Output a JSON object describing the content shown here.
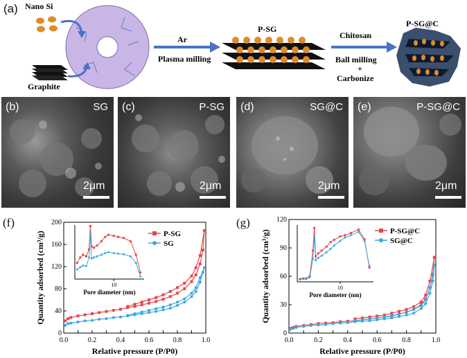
{
  "panel_a": {
    "label": "(a)",
    "nano_si": "Nano Si",
    "graphite": "Graphite",
    "step1_gas": "Ar",
    "step1_method": "Plasma milling",
    "intermediate": "P-SG",
    "step2_top": "Chitosan",
    "step2_mid": "Ball milling",
    "step2_plus": "+",
    "step2_bot": "Carbonize",
    "final": "P-SG@C",
    "colors": {
      "disk": "#c9b6e6",
      "si": "#e08a2c",
      "arrow": "#4a72c4"
    }
  },
  "sem_panels": [
    {
      "label": "(b)",
      "name": "SG",
      "scale": "2μm"
    },
    {
      "label": "(c)",
      "name": "P-SG",
      "scale": "2μm"
    },
    {
      "label": "(d)",
      "name": "SG@C",
      "scale": "2μm"
    },
    {
      "label": "(e)",
      "name": "P-SG@C",
      "scale": "2μm"
    }
  ],
  "chart_data": [
    {
      "panel": "(f)",
      "type": "line",
      "xlabel": "Relative pressure (P/P0)",
      "ylabel": "Quantity adsorbed (cm³/g)",
      "xlim": [
        0,
        1.0
      ],
      "ylim": [
        0,
        200
      ],
      "xticks": [
        "0.0",
        "0.1",
        "0.2",
        "0.3",
        "0.4",
        "0.5",
        "0.6",
        "0.7",
        "0.8",
        "0.9",
        "1.0"
      ],
      "yticks": [
        "0",
        "40",
        "80",
        "120",
        "160",
        "200"
      ],
      "legend_position": "top-right",
      "series": [
        {
          "name": "P-SG",
          "color": "#e8474c",
          "x": [
            0.01,
            0.03,
            0.05,
            0.1,
            0.15,
            0.2,
            0.25,
            0.3,
            0.35,
            0.4,
            0.45,
            0.5,
            0.55,
            0.6,
            0.65,
            0.7,
            0.75,
            0.8,
            0.85,
            0.9,
            0.93,
            0.96,
            0.98,
            0.99
          ],
          "y": [
            22,
            26,
            28,
            31,
            33,
            35,
            37,
            39,
            41,
            43,
            46,
            48,
            51,
            54,
            57,
            61,
            66,
            72,
            80,
            93,
            105,
            125,
            150,
            185
          ],
          "desorption_x": [
            0.99,
            0.96,
            0.93,
            0.9,
            0.85,
            0.8,
            0.75,
            0.7,
            0.65,
            0.6,
            0.55,
            0.5,
            0.45
          ],
          "desorption_y": [
            185,
            140,
            118,
            103,
            90,
            82,
            75,
            69,
            64,
            60,
            56,
            52,
            48
          ]
        },
        {
          "name": "SG",
          "color": "#3aa8e0",
          "x": [
            0.01,
            0.03,
            0.05,
            0.1,
            0.15,
            0.2,
            0.25,
            0.3,
            0.35,
            0.4,
            0.45,
            0.5,
            0.55,
            0.6,
            0.65,
            0.7,
            0.75,
            0.8,
            0.85,
            0.9,
            0.93,
            0.96,
            0.98,
            0.99
          ],
          "y": [
            14,
            17,
            18,
            20,
            22,
            23,
            25,
            26,
            28,
            29,
            31,
            33,
            35,
            37,
            39,
            42,
            45,
            50,
            56,
            66,
            75,
            92,
            110,
            118
          ],
          "desorption_x": [
            0.99,
            0.96,
            0.93,
            0.9,
            0.85,
            0.8,
            0.75,
            0.7,
            0.65,
            0.6,
            0.55,
            0.5,
            0.45
          ],
          "desorption_y": [
            118,
            100,
            82,
            72,
            62,
            56,
            51,
            47,
            44,
            41,
            38,
            35,
            32
          ]
        }
      ],
      "inset": {
        "xlabel": "Pore diameter (nm)",
        "xtick": "10",
        "series": [
          {
            "name": "P-SG",
            "color": "#e8474c",
            "x": [
              2.2,
              2.5,
              2.8,
              3.2,
              3.6,
              3.8,
              4.0,
              4.4,
              5,
              6,
              7,
              8,
              10,
              12,
              15,
              20,
              25,
              30
            ],
            "y": [
              0.3,
              0.4,
              0.45,
              0.42,
              0.55,
              0.98,
              0.6,
              0.58,
              0.62,
              0.7,
              0.78,
              0.82,
              0.8,
              0.78,
              0.76,
              0.7,
              0.45,
              0.12
            ]
          },
          {
            "name": "SG",
            "color": "#3aa8e0",
            "x": [
              2.2,
              2.5,
              2.8,
              3.2,
              3.6,
              3.8,
              4.0,
              4.4,
              5,
              6,
              7,
              8,
              10,
              12,
              15,
              20,
              25,
              30
            ],
            "y": [
              0.18,
              0.22,
              0.25,
              0.24,
              0.4,
              0.85,
              0.38,
              0.4,
              0.42,
              0.45,
              0.48,
              0.5,
              0.48,
              0.47,
              0.46,
              0.42,
              0.3,
              0.05
            ]
          }
        ]
      }
    },
    {
      "panel": "(g)",
      "type": "line",
      "xlabel": "Relative pressure (P/P0)",
      "ylabel": "Quantity adsorbed (cm³/g)",
      "xlim": [
        0,
        1.0
      ],
      "ylim": [
        0,
        120
      ],
      "xticks": [
        "0.0",
        "0.1",
        "0.2",
        "0.3",
        "0.4",
        "0.5",
        "0.6",
        "0.7",
        "0.8",
        "0.9",
        "1.0"
      ],
      "yticks": [
        "0",
        "30",
        "60",
        "90",
        "120"
      ],
      "legend_position": "top-right",
      "series": [
        {
          "name": "P-SG@C",
          "color": "#e8474c",
          "x": [
            0.01,
            0.03,
            0.05,
            0.1,
            0.15,
            0.2,
            0.25,
            0.3,
            0.35,
            0.4,
            0.45,
            0.5,
            0.55,
            0.6,
            0.65,
            0.7,
            0.75,
            0.8,
            0.85,
            0.9,
            0.93,
            0.96,
            0.98,
            0.99
          ],
          "y": [
            5,
            6,
            7,
            8,
            9,
            10,
            10.5,
            11,
            12,
            12.5,
            13,
            14,
            15,
            16,
            17,
            18,
            20,
            22,
            25,
            30,
            36,
            48,
            62,
            80
          ],
          "desorption_x": [
            0.99,
            0.96,
            0.93,
            0.9,
            0.85,
            0.8,
            0.75,
            0.7,
            0.65,
            0.6,
            0.55,
            0.5,
            0.45
          ],
          "desorption_y": [
            80,
            55,
            40,
            33,
            28,
            25,
            23,
            21,
            19,
            18,
            17,
            16,
            15
          ]
        },
        {
          "name": "SG@C",
          "color": "#3aa8e0",
          "x": [
            0.01,
            0.03,
            0.05,
            0.1,
            0.15,
            0.2,
            0.25,
            0.3,
            0.35,
            0.4,
            0.45,
            0.5,
            0.55,
            0.6,
            0.65,
            0.7,
            0.75,
            0.8,
            0.85,
            0.9,
            0.93,
            0.96,
            0.98,
            0.99
          ],
          "y": [
            4,
            5,
            6,
            7,
            8,
            8.5,
            9,
            10,
            10.5,
            11,
            12,
            12.5,
            13,
            14,
            15,
            16,
            17.5,
            19,
            21,
            26,
            31,
            42,
            55,
            72
          ],
          "desorption_x": [
            0.99,
            0.96,
            0.93,
            0.9,
            0.85,
            0.8,
            0.75,
            0.7,
            0.65,
            0.6,
            0.55,
            0.5,
            0.45
          ],
          "desorption_y": [
            72,
            48,
            35,
            29,
            25,
            22,
            20,
            18.5,
            17,
            16,
            15,
            14,
            13
          ]
        }
      ],
      "inset": {
        "xlabel": "Pore diameter (nm)",
        "xtick": "10",
        "series": [
          {
            "name": "P-SG@C",
            "color": "#e8474c",
            "x": [
              2.2,
              2.5,
              2.8,
              3.2,
              3.6,
              3.8,
              4.0,
              4.4,
              5,
              6,
              7,
              8,
              10,
              12,
              15,
              20,
              25,
              30
            ],
            "y": [
              0.05,
              0.06,
              0.06,
              0.1,
              0.55,
              0.95,
              0.45,
              0.5,
              0.55,
              0.62,
              0.7,
              0.74,
              0.8,
              0.82,
              0.86,
              0.92,
              0.75,
              0.25
            ]
          },
          {
            "name": "SG@C",
            "color": "#3aa8e0",
            "x": [
              2.2,
              2.5,
              2.8,
              3.2,
              3.6,
              3.8,
              4.0,
              4.4,
              5,
              6,
              7,
              8,
              10,
              12,
              15,
              20,
              25,
              30
            ],
            "y": [
              0.04,
              0.05,
              0.05,
              0.08,
              0.4,
              0.8,
              0.38,
              0.42,
              0.46,
              0.52,
              0.58,
              0.64,
              0.72,
              0.78,
              0.82,
              0.88,
              0.72,
              0.28
            ]
          }
        ]
      }
    }
  ]
}
